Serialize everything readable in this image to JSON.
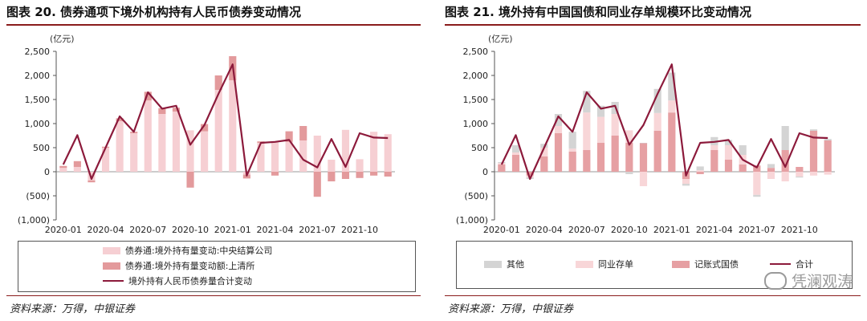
{
  "left": {
    "title": "图表 20. 债券通项下境外机构持有人民币债券变动情况",
    "source": "资料来源：万得，中银证券",
    "unit": "(亿元)",
    "legend": {
      "s1": "债券通:境外持有量变动:中央结算公司",
      "s2": "债券通:境外持有量变动额:上清所",
      "total": "境外持有人民币债券量合计变动"
    }
  },
  "right": {
    "title": "图表 21. 境外持有中国国债和同业存单规模环比变动情况",
    "source": "资料来源：万得，中银证券",
    "unit": "(亿元)",
    "legend": {
      "other": "其他",
      "ncd": "同业存单",
      "gov": "记账式国债",
      "total": "合计"
    }
  },
  "watermark": "凭澜观涛",
  "colors": {
    "ccdc": "#f6cfd3",
    "shclearing": "#e39a9c",
    "line": "#8c1a3b",
    "other": "#d4d4d4",
    "ncd": "#f8d6d8",
    "gov": "#e6a0a3",
    "rule": "#8a1c1c"
  },
  "chart_data": [
    {
      "type": "bar",
      "stacked": true,
      "categories": [
        "2020-01",
        "2020-02",
        "2020-03",
        "2020-04",
        "2020-05",
        "2020-06",
        "2020-07",
        "2020-08",
        "2020-09",
        "2020-10",
        "2020-11",
        "2020-12",
        "2021-01",
        "2021-02",
        "2021-03",
        "2021-04",
        "2021-05",
        "2021-06",
        "2021-07",
        "2021-08",
        "2021-09",
        "2021-10",
        "2021-11",
        "2021-12"
      ],
      "tick_labels": [
        "2020-01",
        "2020-04",
        "2020-07",
        "2020-10",
        "2021-01",
        "2021-04",
        "2021-07",
        "2021-10"
      ],
      "series": [
        {
          "name": "债券通:境外持有量变动:中央结算公司",
          "type": "bar",
          "values": [
            80,
            100,
            -180,
            500,
            1050,
            800,
            1480,
            1200,
            1250,
            860,
            840,
            1700,
            1900,
            -60,
            600,
            610,
            620,
            650,
            750,
            250,
            870,
            260,
            830,
            780
          ]
        },
        {
          "name": "债券通:境外持有量变动额:上清所",
          "type": "bar",
          "values": [
            40,
            120,
            -40,
            20,
            60,
            30,
            180,
            120,
            80,
            -330,
            150,
            300,
            500,
            -80,
            30,
            -80,
            220,
            300,
            -520,
            -200,
            -150,
            -130,
            -80,
            -100
          ]
        },
        {
          "name": "境外持有人民币债券量合计变动",
          "type": "line",
          "values": [
            150,
            760,
            -150,
            500,
            1150,
            830,
            1650,
            1310,
            1370,
            560,
            970,
            1620,
            2230,
            -80,
            600,
            620,
            660,
            250,
            90,
            680,
            100,
            800,
            710,
            700
          ]
        }
      ],
      "ylim": [
        -1000,
        2500
      ],
      "yticks": [
        2500,
        2000,
        1500,
        1000,
        500,
        0,
        -500,
        -1000
      ],
      "ytick_labels": [
        "2,500",
        "2,000",
        "1,500",
        "1,000",
        "500",
        "0",
        "(500)",
        "(1,000)"
      ],
      "grid": false,
      "legend_position": "bottom"
    },
    {
      "type": "bar",
      "stacked": true,
      "categories": [
        "2020-01",
        "2020-02",
        "2020-03",
        "2020-04",
        "2020-05",
        "2020-06",
        "2020-07",
        "2020-08",
        "2020-09",
        "2020-10",
        "2020-11",
        "2020-12",
        "2021-01",
        "2021-02",
        "2021-03",
        "2021-04",
        "2021-05",
        "2021-06",
        "2021-07",
        "2021-08",
        "2021-09",
        "2021-10",
        "2021-11",
        "2021-12"
      ],
      "tick_labels": [
        "2020-01",
        "2020-04",
        "2020-07",
        "2020-10",
        "2021-01",
        "2021-04",
        "2021-07",
        "2021-10"
      ],
      "series": [
        {
          "name": "记账式国债",
          "type": "bar",
          "values": [
            150,
            350,
            -80,
            320,
            800,
            420,
            450,
            600,
            750,
            600,
            600,
            850,
            1230,
            -150,
            -50,
            450,
            250,
            150,
            130,
            80,
            450,
            100,
            850,
            650
          ]
        },
        {
          "name": "同业存单",
          "type": "bar",
          "values": [
            30,
            50,
            -40,
            180,
            150,
            60,
            780,
            540,
            450,
            260,
            -300,
            370,
            250,
            -100,
            30,
            100,
            300,
            200,
            -480,
            -150,
            -200,
            -100,
            -80,
            -60
          ]
        },
        {
          "name": "其他",
          "type": "bar",
          "values": [
            20,
            150,
            -30,
            80,
            250,
            350,
            450,
            230,
            250,
            -50,
            0,
            500,
            580,
            -40,
            80,
            170,
            110,
            200,
            -40,
            80,
            500,
            -20,
            30,
            30
          ]
        },
        {
          "name": "合计",
          "type": "line",
          "values": [
            150,
            760,
            -150,
            500,
            1150,
            830,
            1650,
            1310,
            1370,
            560,
            970,
            1620,
            2230,
            -80,
            600,
            620,
            660,
            250,
            90,
            680,
            100,
            800,
            710,
            700
          ]
        }
      ],
      "ylim": [
        -1000,
        2500
      ],
      "yticks": [
        2500,
        2000,
        1500,
        1000,
        500,
        0,
        -500,
        -1000
      ],
      "ytick_labels": [
        "2,500",
        "2,000",
        "1,500",
        "1,000",
        "500",
        "0",
        "(500)",
        "(1,000)"
      ],
      "grid": false,
      "legend_position": "bottom"
    }
  ]
}
